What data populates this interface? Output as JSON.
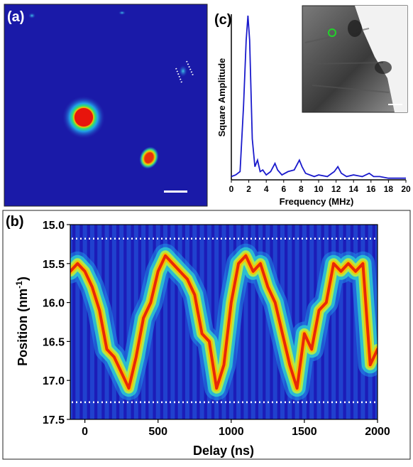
{
  "panels": {
    "a": {
      "label": "(a)"
    },
    "b": {
      "label": "(b)"
    },
    "c": {
      "label": "(c)"
    }
  },
  "chart_data": [
    {
      "panel": "a",
      "type": "image",
      "description_colormap": "jet",
      "background_color": "#1a1aa8",
      "spots": [
        {
          "kind": "central-beam",
          "color_core": "#e81a10"
        },
        {
          "kind": "diffraction-spot",
          "color_core": "#e8400a"
        },
        {
          "kind": "diffraction-spot-small",
          "color_core": "#30b8d8"
        }
      ],
      "scale_bar": true,
      "dotted_markers": true
    },
    {
      "panel": "b",
      "type": "heatmap",
      "xlabel": "Delay (ns)",
      "ylabel": "Position (nm",
      "ylabel_sup": "-1",
      "ylabel_close": ")",
      "xlim": [
        -100,
        2000
      ],
      "ylim": [
        15.0,
        17.5
      ],
      "y_inverted": true,
      "xticks": [
        0,
        500,
        1000,
        1500,
        2000
      ],
      "xtick_labels": [
        "0",
        "500",
        "1000",
        "1500",
        "2000"
      ],
      "yticks": [
        15.0,
        15.5,
        16.0,
        16.5,
        17.0,
        17.5
      ],
      "ytick_labels": [
        "15.0",
        "15.5",
        "16.0",
        "16.5",
        "17.0",
        "17.5"
      ],
      "hlines": [
        15.18,
        17.28
      ],
      "colormap": "jet",
      "trace": {
        "x": [
          -100,
          -50,
          0,
          50,
          100,
          150,
          200,
          250,
          300,
          350,
          400,
          450,
          500,
          550,
          600,
          650,
          700,
          750,
          800,
          850,
          900,
          950,
          1000,
          1050,
          1100,
          1150,
          1200,
          1250,
          1300,
          1350,
          1400,
          1450,
          1500,
          1550,
          1600,
          1650,
          1700,
          1750,
          1800,
          1850,
          1900,
          1950,
          2000
        ],
        "y": [
          15.6,
          15.5,
          15.6,
          15.8,
          16.1,
          16.6,
          16.7,
          16.9,
          17.1,
          16.7,
          16.2,
          16.0,
          15.6,
          15.4,
          15.5,
          15.6,
          15.7,
          15.9,
          16.4,
          16.5,
          17.1,
          16.8,
          16.0,
          15.5,
          15.4,
          15.6,
          15.5,
          15.8,
          16.0,
          16.4,
          16.8,
          17.1,
          16.4,
          16.6,
          16.1,
          16.0,
          15.5,
          15.6,
          15.5,
          15.6,
          15.5,
          16.8,
          16.6
        ]
      }
    },
    {
      "panel": "c",
      "type": "line",
      "xlabel": "Frequency (MHz)",
      "ylabel": "Square Amplitude",
      "xlim": [
        0,
        20
      ],
      "xticks": [
        0,
        2,
        4,
        6,
        8,
        10,
        12,
        14,
        16,
        18,
        20
      ],
      "xtick_labels": [
        "0",
        "2",
        "4",
        "6",
        "8",
        "10",
        "12",
        "14",
        "16",
        "18",
        "20"
      ],
      "ylim": [
        0,
        1.0
      ],
      "line_color": "#1a1acc",
      "series": [
        {
          "x": [
            0,
            0.5,
            1.0,
            1.4,
            1.7,
            1.9,
            2.1,
            2.4,
            2.7,
            3.0,
            3.3,
            3.6,
            4.0,
            4.5,
            5.0,
            5.3,
            5.8,
            6.5,
            7.2,
            7.8,
            8.1,
            8.5,
            9.0,
            9.5,
            10.0,
            11.0,
            11.8,
            12.2,
            12.6,
            13.2,
            14.0,
            15.0,
            15.8,
            16.3,
            17.0,
            18.0,
            19.0,
            20.0
          ],
          "y": [
            0.02,
            0.03,
            0.05,
            0.45,
            0.85,
            1.0,
            0.85,
            0.25,
            0.08,
            0.12,
            0.05,
            0.06,
            0.03,
            0.05,
            0.1,
            0.06,
            0.03,
            0.05,
            0.06,
            0.12,
            0.08,
            0.04,
            0.03,
            0.02,
            0.03,
            0.02,
            0.05,
            0.08,
            0.04,
            0.02,
            0.03,
            0.02,
            0.04,
            0.02,
            0.02,
            0.01,
            0.01,
            0.01
          ]
        }
      ],
      "inset": {
        "kind": "micrograph",
        "marker_color": "#22d22a",
        "scale_bar": true
      }
    }
  ]
}
